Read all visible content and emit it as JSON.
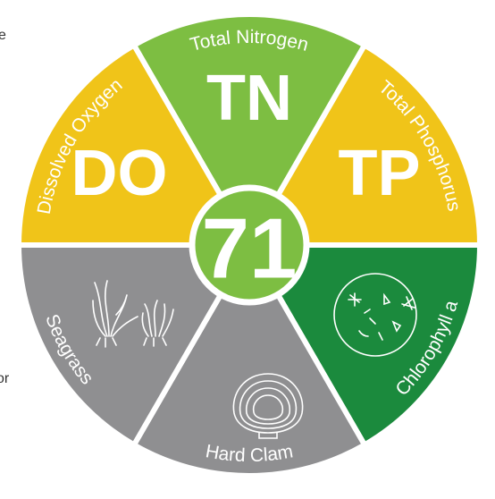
{
  "left_text_fragments": [
    "e",
    "or"
  ],
  "score": "71",
  "score_color": "#7dbe42",
  "segments": [
    {
      "label": "Total Nitrogen",
      "abbreviation": "TN",
      "color": "#7dbe42"
    },
    {
      "label": "Total Phosphorus",
      "abbreviation": "TP",
      "color": "#f0c419"
    },
    {
      "label": "Chlorophyll a",
      "color": "#1b8a3d"
    },
    {
      "label": "Hard Clam",
      "color": "#8f8f91"
    },
    {
      "label": "Seagrass",
      "color": "#8f8f91"
    },
    {
      "label": "Dissolved Oxygen",
      "abbreviation": "DO",
      "color": "#f0c419"
    }
  ]
}
